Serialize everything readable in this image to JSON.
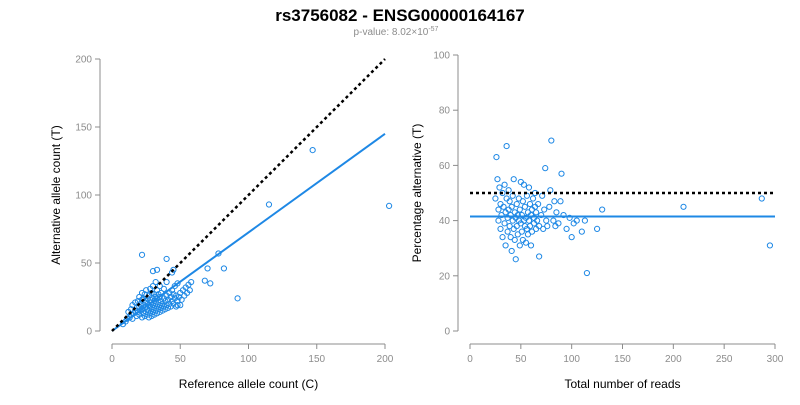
{
  "header": {
    "title": "rs3756082 - ENSG00000164167",
    "pvalue_prefix": "p-value: 8.02×10",
    "pvalue_exponent": "-57"
  },
  "colors": {
    "point": "#1e88e5",
    "fit": "#1e88e5",
    "reference": "#000000",
    "axis": "#8c8c8c"
  },
  "chart_data": [
    {
      "type": "scatter",
      "xlabel": "Reference allele count (C)",
      "ylabel": "Alternative allele count (T)",
      "xlim": [
        0,
        200
      ],
      "ylim": [
        0,
        200
      ],
      "xticks": [
        0,
        50,
        100,
        150,
        200
      ],
      "yticks": [
        0,
        50,
        100,
        150,
        200
      ],
      "reference_line": {
        "style": "dotted",
        "x": [
          0,
          200
        ],
        "y": [
          0,
          200
        ]
      },
      "fit_line": {
        "x": [
          0,
          200
        ],
        "y": [
          0,
          145
        ]
      },
      "points": [
        [
          8,
          5
        ],
        [
          10,
          7
        ],
        [
          11,
          9
        ],
        [
          12,
          14
        ],
        [
          13,
          10
        ],
        [
          14,
          16
        ],
        [
          14,
          12
        ],
        [
          15,
          9
        ],
        [
          15,
          19
        ],
        [
          16,
          13
        ],
        [
          17,
          15
        ],
        [
          17,
          21
        ],
        [
          18,
          11
        ],
        [
          18,
          17
        ],
        [
          19,
          14
        ],
        [
          19,
          22
        ],
        [
          20,
          12
        ],
        [
          20,
          18
        ],
        [
          20,
          25
        ],
        [
          21,
          15
        ],
        [
          21,
          20
        ],
        [
          22,
          10
        ],
        [
          22,
          16
        ],
        [
          22,
          23
        ],
        [
          22,
          28
        ],
        [
          23,
          13
        ],
        [
          23,
          19
        ],
        [
          23,
          24
        ],
        [
          24,
          11
        ],
        [
          24,
          17
        ],
        [
          24,
          21
        ],
        [
          24,
          27
        ],
        [
          25,
          14
        ],
        [
          25,
          18
        ],
        [
          25,
          22
        ],
        [
          25,
          30
        ],
        [
          26,
          12
        ],
        [
          26,
          16
        ],
        [
          26,
          20
        ],
        [
          26,
          24
        ],
        [
          27,
          10
        ],
        [
          27,
          15
        ],
        [
          27,
          19
        ],
        [
          27,
          26
        ],
        [
          28,
          13
        ],
        [
          28,
          18
        ],
        [
          28,
          23
        ],
        [
          28,
          31
        ],
        [
          29,
          11
        ],
        [
          29,
          16
        ],
        [
          29,
          21
        ],
        [
          29,
          28
        ],
        [
          30,
          14
        ],
        [
          30,
          19
        ],
        [
          30,
          24
        ],
        [
          30,
          33
        ],
        [
          31,
          12
        ],
        [
          31,
          17
        ],
        [
          31,
          22
        ],
        [
          31,
          27
        ],
        [
          32,
          15
        ],
        [
          32,
          20
        ],
        [
          32,
          25
        ],
        [
          32,
          36
        ],
        [
          33,
          13
        ],
        [
          33,
          18
        ],
        [
          33,
          24
        ],
        [
          33,
          30
        ],
        [
          34,
          16
        ],
        [
          34,
          21
        ],
        [
          34,
          27
        ],
        [
          35,
          14
        ],
        [
          35,
          19
        ],
        [
          35,
          25
        ],
        [
          35,
          33
        ],
        [
          36,
          17
        ],
        [
          36,
          22
        ],
        [
          36,
          28
        ],
        [
          37,
          15
        ],
        [
          37,
          20
        ],
        [
          38,
          18
        ],
        [
          38,
          24
        ],
        [
          38,
          31
        ],
        [
          39,
          16
        ],
        [
          39,
          22
        ],
        [
          40,
          19
        ],
        [
          40,
          26
        ],
        [
          40,
          36
        ],
        [
          41,
          17
        ],
        [
          41,
          23
        ],
        [
          42,
          20
        ],
        [
          42,
          28
        ],
        [
          43,
          18
        ],
        [
          43,
          25
        ],
        [
          44,
          22
        ],
        [
          44,
          30
        ],
        [
          45,
          20
        ],
        [
          45,
          27
        ],
        [
          46,
          24
        ],
        [
          46,
          33
        ],
        [
          47,
          18
        ],
        [
          47,
          26
        ],
        [
          48,
          22
        ],
        [
          48,
          35
        ],
        [
          49,
          25
        ],
        [
          50,
          19
        ],
        [
          50,
          28
        ],
        [
          51,
          23
        ],
        [
          52,
          30
        ],
        [
          53,
          26
        ],
        [
          54,
          32
        ],
        [
          55,
          28
        ],
        [
          56,
          34
        ],
        [
          57,
          30
        ],
        [
          58,
          36
        ],
        [
          22,
          56
        ],
        [
          30,
          44
        ],
        [
          33,
          45
        ],
        [
          40,
          53
        ],
        [
          44,
          43
        ],
        [
          45,
          45
        ],
        [
          48,
          19
        ],
        [
          68,
          37
        ],
        [
          72,
          35
        ],
        [
          70,
          46
        ],
        [
          78,
          57
        ],
        [
          82,
          46
        ],
        [
          92,
          24
        ],
        [
          115,
          93
        ],
        [
          147,
          133
        ],
        [
          203,
          92
        ]
      ]
    },
    {
      "type": "scatter",
      "xlabel": "Total number of reads",
      "ylabel": "Percentage alternative (T)",
      "xlim": [
        0,
        300
      ],
      "ylim": [
        0,
        100
      ],
      "xticks": [
        0,
        50,
        100,
        150,
        200,
        250,
        300
      ],
      "yticks": [
        0,
        20,
        40,
        60,
        80,
        100
      ],
      "reference_line": {
        "style": "dotted",
        "x": [
          0,
          300
        ],
        "y": [
          50,
          50
        ]
      },
      "fit_line": {
        "x": [
          0,
          300
        ],
        "y": [
          41.5,
          41.5
        ]
      },
      "points": [
        [
          25,
          48
        ],
        [
          26,
          63
        ],
        [
          27,
          55
        ],
        [
          28,
          44
        ],
        [
          28,
          40
        ],
        [
          29,
          52
        ],
        [
          30,
          37
        ],
        [
          30,
          46
        ],
        [
          31,
          42
        ],
        [
          32,
          34
        ],
        [
          32,
          50
        ],
        [
          33,
          45
        ],
        [
          34,
          39
        ],
        [
          34,
          53
        ],
        [
          35,
          43
        ],
        [
          35,
          31
        ],
        [
          36,
          48
        ],
        [
          36,
          67
        ],
        [
          37,
          41
        ],
        [
          37,
          36
        ],
        [
          38,
          44
        ],
        [
          38,
          51
        ],
        [
          39,
          38
        ],
        [
          39,
          47
        ],
        [
          40,
          34
        ],
        [
          40,
          42
        ],
        [
          41,
          45
        ],
        [
          41,
          29
        ],
        [
          42,
          40
        ],
        [
          42,
          49
        ],
        [
          43,
          37
        ],
        [
          43,
          55
        ],
        [
          44,
          43
        ],
        [
          44,
          33
        ],
        [
          45,
          41
        ],
        [
          45,
          26
        ],
        [
          46,
          46
        ],
        [
          46,
          38
        ],
        [
          47,
          42
        ],
        [
          47,
          35
        ],
        [
          48,
          48
        ],
        [
          48,
          40
        ],
        [
          49,
          44
        ],
        [
          49,
          31
        ],
        [
          50,
          39
        ],
        [
          50,
          54
        ],
        [
          51,
          42
        ],
        [
          51,
          36
        ],
        [
          52,
          47
        ],
        [
          52,
          33
        ],
        [
          53,
          40
        ],
        [
          53,
          53
        ],
        [
          54,
          38
        ],
        [
          54,
          45
        ],
        [
          55,
          32
        ],
        [
          55,
          41
        ],
        [
          56,
          49
        ],
        [
          56,
          37
        ],
        [
          57,
          43
        ],
        [
          57,
          35
        ],
        [
          58,
          40
        ],
        [
          58,
          52
        ],
        [
          59,
          46
        ],
        [
          59,
          38
        ],
        [
          60,
          42
        ],
        [
          60,
          31
        ],
        [
          61,
          44
        ],
        [
          61,
          36
        ],
        [
          62,
          48
        ],
        [
          63,
          41
        ],
        [
          63,
          39
        ],
        [
          64,
          45
        ],
        [
          64,
          50
        ],
        [
          65,
          37
        ],
        [
          65,
          43
        ],
        [
          66,
          40
        ],
        [
          67,
          46
        ],
        [
          68,
          38
        ],
        [
          68,
          27
        ],
        [
          70,
          42
        ],
        [
          71,
          49
        ],
        [
          72,
          37
        ],
        [
          73,
          44
        ],
        [
          74,
          59
        ],
        [
          75,
          40
        ],
        [
          76,
          38
        ],
        [
          78,
          45
        ],
        [
          79,
          51
        ],
        [
          80,
          69
        ],
        [
          82,
          40
        ],
        [
          83,
          47
        ],
        [
          84,
          38
        ],
        [
          85,
          43
        ],
        [
          87,
          39
        ],
        [
          89,
          47
        ],
        [
          90,
          57
        ],
        [
          92,
          42
        ],
        [
          95,
          37
        ],
        [
          98,
          41
        ],
        [
          100,
          34
        ],
        [
          102,
          39
        ],
        [
          105,
          40
        ],
        [
          110,
          36
        ],
        [
          113,
          40
        ],
        [
          115,
          21
        ],
        [
          125,
          37
        ],
        [
          130,
          44
        ],
        [
          210,
          45
        ],
        [
          287,
          48
        ],
        [
          295,
          31
        ]
      ]
    }
  ]
}
